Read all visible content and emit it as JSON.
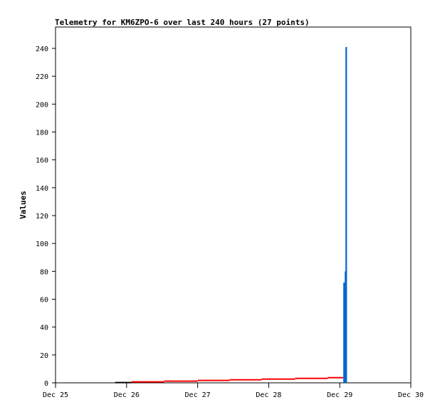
{
  "chart_data": {
    "type": "line",
    "title": "Telemetry for KM6ZPO-6 over last 240 hours (27 points)",
    "xlabel": "",
    "ylabel": "Values",
    "xlim": [
      25,
      30
    ],
    "ylim": [
      0,
      255
    ],
    "x_ticks": [
      "Dec 25",
      "Dec 26",
      "Dec 27",
      "Dec 28",
      "Dec 29",
      "Dec 30"
    ],
    "y_ticks": [
      0,
      20,
      40,
      60,
      80,
      100,
      120,
      140,
      160,
      180,
      200,
      220,
      240
    ],
    "grid": false,
    "x_unit_note_days_in_december": true,
    "series": [
      {
        "color": "#000000",
        "style": "step",
        "x": [
          25.84,
          26.07
        ],
        "y": [
          0.2,
          0.2
        ]
      },
      {
        "color": "#ff0000",
        "style": "step",
        "x": [
          26.07,
          26.53,
          27.0,
          27.45,
          27.9,
          28.37,
          28.83,
          29.05
        ],
        "y": [
          0.7,
          1.2,
          1.7,
          2.2,
          2.7,
          3.2,
          3.7,
          3.7
        ]
      },
      {
        "color": "#0066cc",
        "style": "impulse",
        "x": [
          29.05,
          29.07,
          29.08
        ],
        "y": [
          72,
          80,
          241
        ]
      }
    ]
  }
}
